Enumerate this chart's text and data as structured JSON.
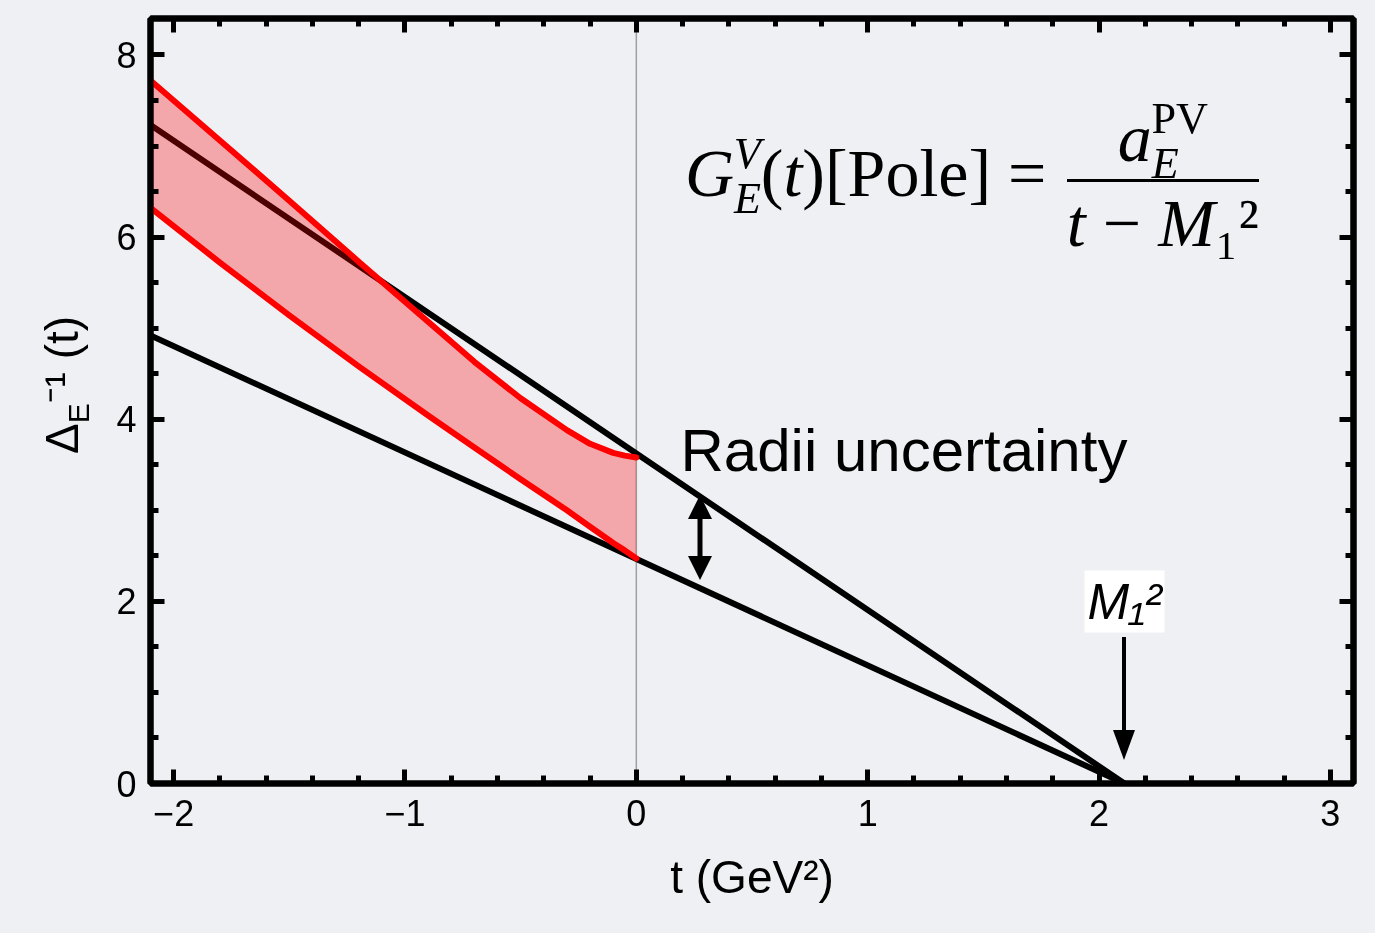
{
  "chart_data": {
    "type": "line",
    "xlabel": "t (GeV²)",
    "ylabel": "Δ$_{E}$⁻¹ (t)",
    "xlim": [
      -2.1,
      3.1
    ],
    "ylim": [
      0,
      8.4
    ],
    "xticks": [
      {
        "value": -2,
        "label": "−2"
      },
      {
        "value": -1.8,
        "label": null
      },
      {
        "value": -1.6,
        "label": null
      },
      {
        "value": -1.4,
        "label": null
      },
      {
        "value": -1.2,
        "label": null
      },
      {
        "value": -1,
        "label": "−1"
      },
      {
        "value": -0.8,
        "label": null
      },
      {
        "value": -0.6,
        "label": null
      },
      {
        "value": -0.4,
        "label": null
      },
      {
        "value": -0.2,
        "label": null
      },
      0,
      {
        "value": 0.2,
        "label": null
      },
      {
        "value": 0.4,
        "label": null
      },
      {
        "value": 0.6,
        "label": null
      },
      {
        "value": 0.8,
        "label": null
      },
      1,
      {
        "value": 1.2,
        "label": null
      },
      {
        "value": 1.4,
        "label": null
      },
      {
        "value": 1.6,
        "label": null
      },
      {
        "value": 1.8,
        "label": null
      },
      2,
      {
        "value": 2.2,
        "label": null
      },
      {
        "value": 2.4,
        "label": null
      },
      {
        "value": 2.6,
        "label": null
      },
      {
        "value": 2.8,
        "label": null
      },
      3
    ],
    "yticks": [
      0,
      {
        "value": 0.5,
        "label": null
      },
      {
        "value": 1,
        "label": null
      },
      {
        "value": 1.5,
        "label": null
      },
      2,
      {
        "value": 2.5,
        "label": null
      },
      {
        "value": 3,
        "label": null
      },
      {
        "value": 3.5,
        "label": null
      },
      4,
      {
        "value": 4.5,
        "label": null
      },
      {
        "value": 5,
        "label": null
      },
      {
        "value": 5.5,
        "label": null
      },
      6,
      {
        "value": 6.5,
        "label": null
      },
      {
        "value": 7,
        "label": null
      },
      {
        "value": 7.5,
        "label": null
      },
      8
    ],
    "series": [
      {
        "color": "#000000",
        "x": [
          -2.1,
          2.11
        ],
        "values": [
          7.23,
          0
        ]
      },
      {
        "color": "#000000",
        "x": [
          -2.1,
          2.11
        ],
        "values": [
          4.92,
          0
        ]
      },
      {
        "color": "#ff0000",
        "x": [
          -2.1,
          -1.8,
          -1.5,
          -1.2,
          -0.9,
          -0.7,
          -0.5,
          -0.3,
          -0.2,
          -0.1,
          -0.05,
          0
        ],
        "values": [
          7.72,
          7.06,
          6.4,
          5.73,
          5.07,
          4.63,
          4.23,
          3.88,
          3.73,
          3.63,
          3.6,
          3.58
        ],
        "lower": [
          6.32,
          5.72,
          5.14,
          4.58,
          4.04,
          3.69,
          3.34,
          3.0,
          2.82,
          2.64,
          2.56,
          2.47
        ],
        "upper": [
          7.72,
          7.06,
          6.4,
          5.73,
          5.07,
          4.63,
          4.23,
          3.88,
          3.73,
          3.63,
          3.6,
          3.58
        ]
      },
      {
        "color": "#ff0000",
        "x": [
          -2.1,
          -1.8,
          -1.5,
          -1.2,
          -0.9,
          -0.7,
          -0.5,
          -0.3,
          -0.2,
          -0.1,
          -0.05,
          0
        ],
        "values": [
          6.32,
          5.72,
          5.14,
          4.58,
          4.04,
          3.69,
          3.34,
          3.0,
          2.82,
          2.64,
          2.56,
          2.47
        ]
      }
    ],
    "ref_lines": [
      {
        "axis": "x",
        "value": 0,
        "color": "#a0a0a0"
      }
    ],
    "annotations": [
      "G$_{E}$$^{V}$(t)[Pole] =",
      "a$_{E}$$^{PV}$",
      "t − M₁²",
      "Radii uncertainty",
      "M₁²"
    ]
  }
}
